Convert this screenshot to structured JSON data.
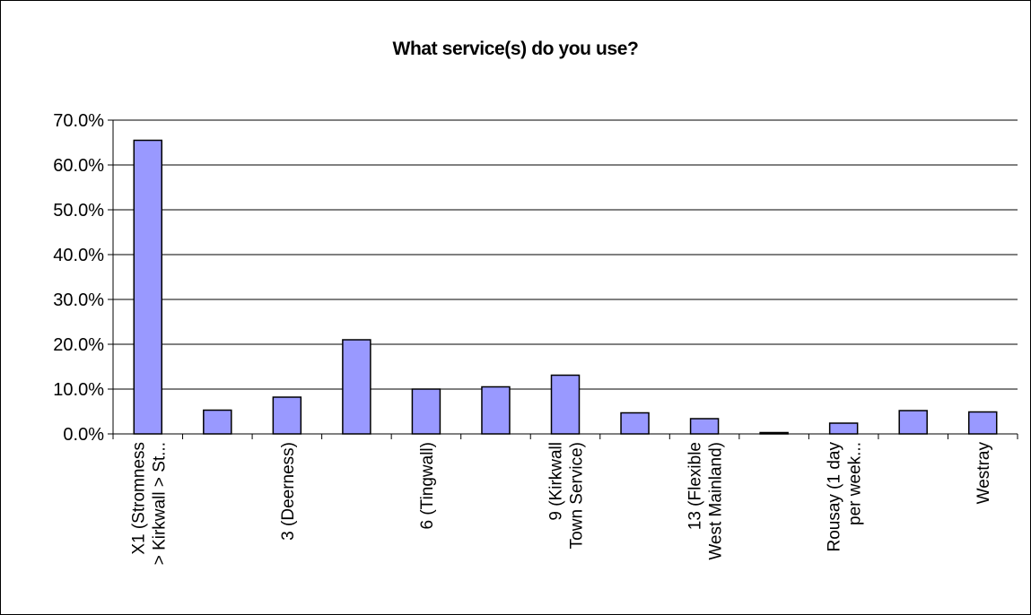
{
  "chart_data": {
    "type": "bar",
    "title": "What service(s) do you use?",
    "xlabel": "",
    "ylabel": "",
    "ylim": [
      0,
      70
    ],
    "yticks": [
      "0.0%",
      "10.0%",
      "20.0%",
      "30.0%",
      "40.0%",
      "50.0%",
      "60.0%",
      "70.0%"
    ],
    "grid": true,
    "legend": "none",
    "bar_color": "#9999ff",
    "categories": [
      [
        "X1 (Stromness",
        "> Kirkwall > St..."
      ],
      [],
      [
        "3 (Deerness)"
      ],
      [],
      [
        "6 (Tingwall)"
      ],
      [],
      [
        "9 (Kirkwall",
        "Town Service)"
      ],
      [],
      [
        "13 (Flexible",
        "West Mainland)"
      ],
      [],
      [
        "Rousay (1 day",
        "per week..."
      ],
      [],
      [
        "Westray"
      ]
    ],
    "values": [
      65.5,
      5.3,
      8.2,
      21.0,
      10.0,
      10.5,
      13.1,
      4.7,
      3.4,
      0.3,
      2.4,
      5.2,
      4.9
    ]
  }
}
